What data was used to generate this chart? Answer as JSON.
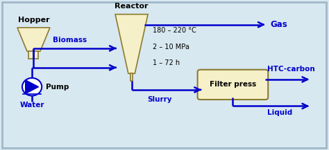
{
  "bg_color": "#d8e8f0",
  "border_color": "#a0b8c8",
  "shape_fill": "#f5f0c8",
  "shape_edge": "#8b7a30",
  "arrow_color": "#0000cc",
  "text_color_blue": "#0000cc",
  "text_color_black": "#000000",
  "hopper_label": "Hopper",
  "reactor_label": "Reactor",
  "pump_label": "Pump",
  "biomass_label": "Biomass",
  "water_label": "Water",
  "slurry_label": "Slurry",
  "gas_label": "Gas",
  "filter_label": "Filter press",
  "htc_label": "HTC-carbon",
  "liquid_label": "Liquid",
  "cond1": "180 – 220 °C",
  "cond2": "2 – 10 MPa",
  "cond3": "1 – 72 h"
}
